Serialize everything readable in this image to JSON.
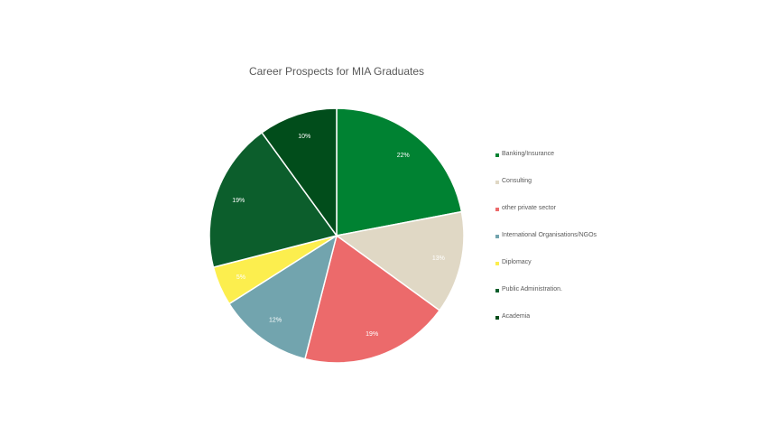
{
  "chart_data": {
    "type": "pie",
    "title": "Career Prospects for MIA Graduates",
    "categories": [
      "Banking/Insurance",
      "Consulting",
      "other private sector",
      "International Organisations/NGOs",
      "Diplomacy",
      "Public Administration.",
      "Academia"
    ],
    "values": [
      22,
      13,
      19,
      12,
      5,
      19,
      10
    ],
    "labels": [
      "22%",
      "13%",
      "19%",
      "12%",
      "5%",
      "19%",
      "10%"
    ],
    "colors": [
      "#008232",
      "#E0D8C5",
      "#EC6A6B",
      "#72A4AE",
      "#FCEE4E",
      "#0C5E2C",
      "#014D1B"
    ],
    "legend_position": "right"
  },
  "legend": {
    "items": [
      {
        "label": "Banking/Insurance",
        "color": "#008232"
      },
      {
        "label": "Consulting",
        "color": "#E0D8C5"
      },
      {
        "label": "other private sector",
        "color": "#EC6A6B"
      },
      {
        "label": "International Organisations/NGOs",
        "color": "#72A4AE"
      },
      {
        "label": "Diplomacy",
        "color": "#FCEE4E"
      },
      {
        "label": "Public Administration.",
        "color": "#0C5E2C"
      },
      {
        "label": "Academia",
        "color": "#014D1B"
      }
    ]
  }
}
